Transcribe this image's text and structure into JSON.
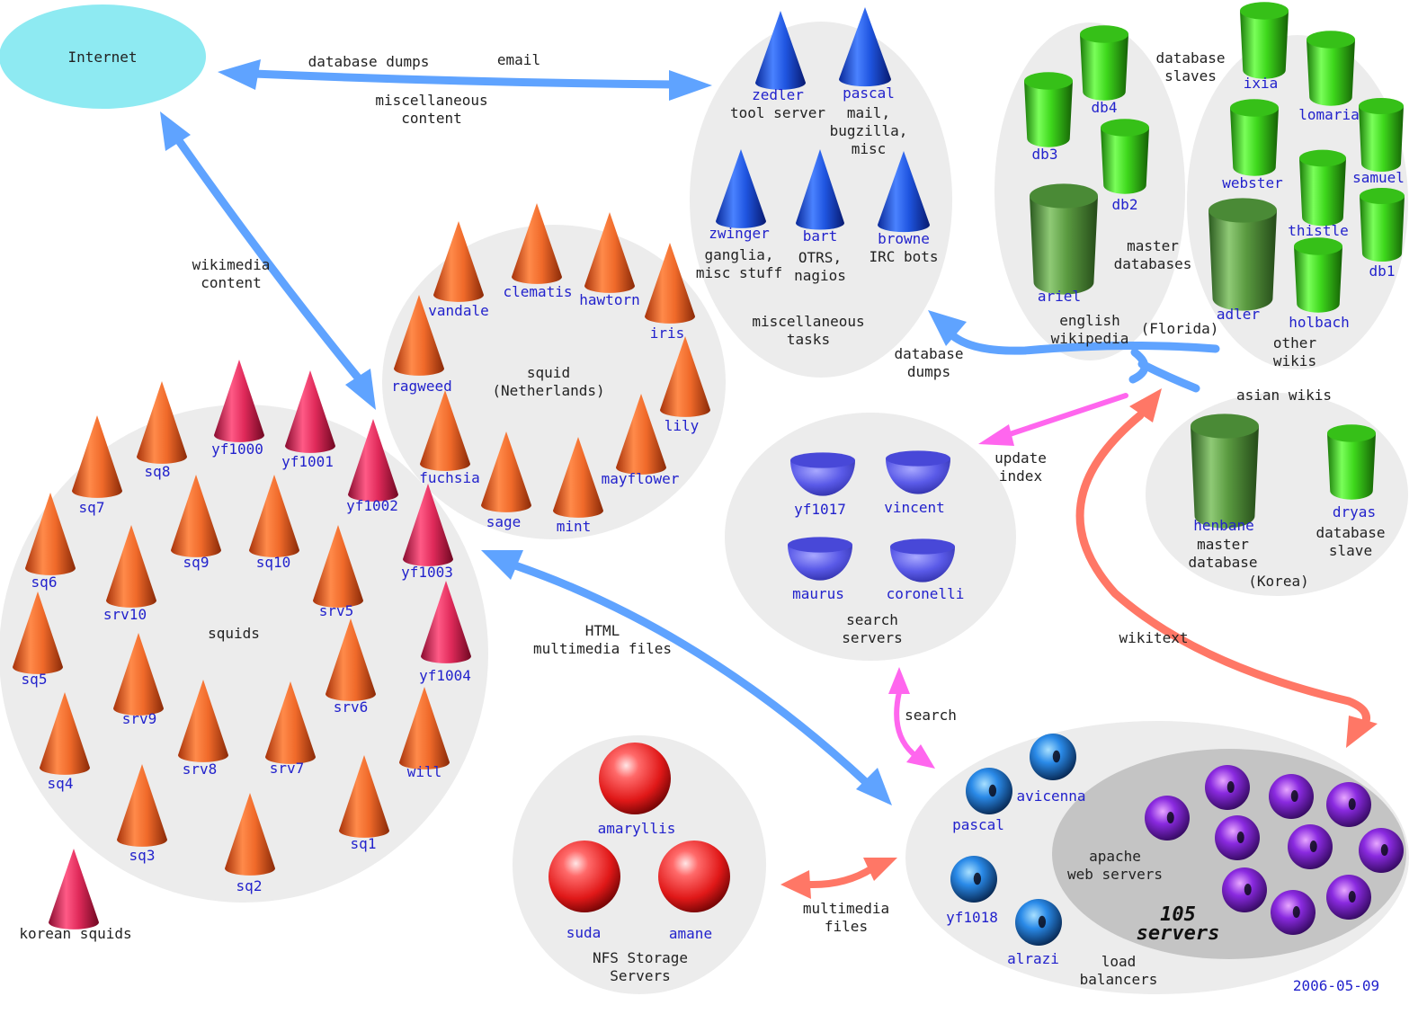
{
  "colors": {
    "group_fill": "#ececec",
    "internet": "#8eeaf2",
    "apache_group": "#c4c4c4",
    "blue_arrow": "#5fa3ff",
    "pink_arrow": "#ff66ee",
    "salmon_arrow": "#ff7766",
    "server_label": "#2222cc",
    "text": "#222222"
  },
  "internet": {
    "label": "Internet"
  },
  "links": {
    "database_dumps": "database dumps",
    "email": "email",
    "misc_content": [
      "miscellaneous",
      "content"
    ],
    "wikimedia_content": [
      "wikimedia",
      "content"
    ],
    "db_dumps": [
      "database",
      "dumps"
    ],
    "update_index": [
      "update",
      "index"
    ],
    "html_multimedia": [
      "HTML",
      "multimedia files"
    ],
    "wikitext": "wikitext",
    "search": "search",
    "multimedia_files": [
      "multimedia",
      "files"
    ]
  },
  "groups": {
    "misc_tasks": [
      "miscellaneous",
      "tasks"
    ],
    "squid_nl": [
      "squid",
      "(Netherlands)"
    ],
    "squids": "squids",
    "korean_squids": "korean squids",
    "english_wikipedia": [
      "english",
      "wikipedia"
    ],
    "florida": "(Florida)",
    "other_wikis": [
      "other",
      "wikis"
    ],
    "database_slaves": [
      "database",
      "slaves"
    ],
    "master_databases": [
      "master",
      "databases"
    ],
    "asian_wikis": "asian wikis",
    "korea": "(Korea)",
    "master_database": [
      "master",
      "database"
    ],
    "database_slave": [
      "database",
      "slave"
    ],
    "search_servers": [
      "search",
      "servers"
    ],
    "nfs": [
      "NFS Storage",
      "Servers"
    ],
    "apache": [
      "apache",
      "web servers"
    ],
    "servers_count": [
      "105",
      "servers"
    ],
    "load_balancers": [
      "load",
      "balancers"
    ],
    "date": "2006-05-09"
  },
  "misc_servers": [
    {
      "name": "zedler",
      "desc": [
        "tool server"
      ]
    },
    {
      "name": "pascal",
      "desc": [
        "mail,",
        "bugzilla,",
        "misc"
      ]
    },
    {
      "name": "zwinger",
      "desc": [
        "ganglia,",
        "misc stuff"
      ]
    },
    {
      "name": "bart",
      "desc": [
        "OTRS,",
        "nagios"
      ]
    },
    {
      "name": "browne",
      "desc": [
        "IRC bots"
      ]
    }
  ],
  "squids_nl": [
    "vandale",
    "clematis",
    "hawtorn",
    "iris",
    "ragweed",
    "lily",
    "fuchsia",
    "sage",
    "mint",
    "mayflower"
  ],
  "squids_fl": [
    "sq8",
    "yf1000",
    "yf1001",
    "sq7",
    "yf1002",
    "sq6",
    "sq9",
    "sq10",
    "yf1003",
    "srv10",
    "srv5",
    "sq5",
    "yf1004",
    "srv9",
    "srv6",
    "sq4",
    "srv8",
    "srv7",
    "will",
    "sq3",
    "sq2",
    "sq1"
  ],
  "korean_squid": "",
  "english_dbs": [
    "db4",
    "db3",
    "db2",
    "ariel"
  ],
  "other_dbs": [
    "ixia",
    "lomaria",
    "webster",
    "samuel",
    "thistle",
    "db1",
    "adler",
    "holbach"
  ],
  "asian_dbs": [
    "henbane",
    "dryas"
  ],
  "search_srv": [
    "yf1017",
    "vincent",
    "maurus",
    "coronelli"
  ],
  "nfs_srv": [
    "amaryllis",
    "suda",
    "amane"
  ],
  "lb_srv": [
    "pascal",
    "avicenna",
    "yf1018",
    "alrazi"
  ]
}
